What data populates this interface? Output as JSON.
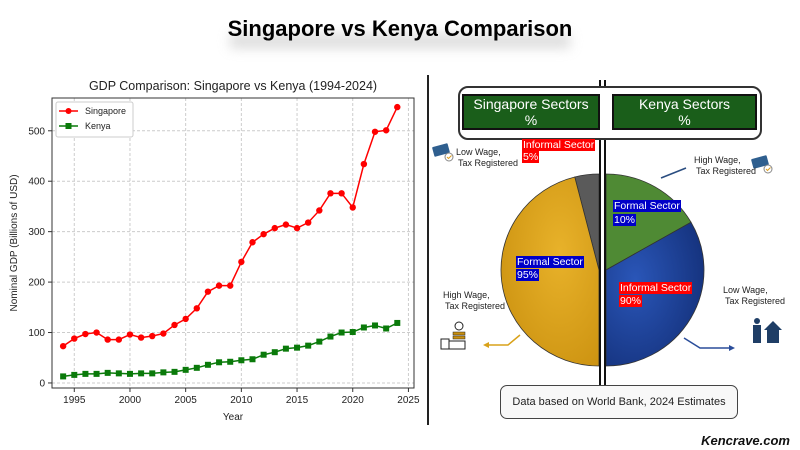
{
  "title": "Singapore vs Kenya Comparison",
  "chart_data": [
    {
      "type": "line",
      "title": "GDP Comparison: Singapore vs Kenya (1994-2024)",
      "xlabel": "Year",
      "ylabel": "Nominal GDP (Billions of USD)",
      "xlim": [
        1993,
        2025.5
      ],
      "ylim": [
        -10,
        565
      ],
      "xticks": [
        1995,
        2000,
        2005,
        2010,
        2015,
        2020,
        2025
      ],
      "yticks": [
        0,
        100,
        200,
        300,
        400,
        500
      ],
      "grid": true,
      "legend": "top-left",
      "x": [
        1994,
        1995,
        1996,
        1997,
        1998,
        1999,
        2000,
        2001,
        2002,
        2003,
        2004,
        2005,
        2006,
        2007,
        2008,
        2009,
        2010,
        2011,
        2012,
        2013,
        2014,
        2015,
        2016,
        2017,
        2018,
        2019,
        2020,
        2021,
        2022,
        2023,
        2024
      ],
      "series": [
        {
          "name": "Singapore",
          "color": "#ff0000",
          "marker": "circle",
          "values": [
            73,
            88,
            97,
            100,
            86,
            86,
            96,
            90,
            93,
            98,
            115,
            127,
            148,
            181,
            193,
            193,
            240,
            279,
            295,
            307,
            314,
            307,
            318,
            342,
            376,
            376,
            348,
            434,
            498,
            501,
            547
          ]
        },
        {
          "name": "Kenya",
          "color": "#0a7a0a",
          "marker": "square",
          "values": [
            13,
            16,
            18,
            18,
            20,
            19,
            18,
            19,
            19,
            21,
            22,
            26,
            30,
            36,
            41,
            42,
            45,
            47,
            56,
            61,
            68,
            70,
            74,
            82,
            92,
            100,
            101,
            110,
            114,
            108,
            119
          ]
        }
      ]
    },
    {
      "type": "pie",
      "title": "Singapore Sectors %",
      "slices": [
        {
          "label": "Informal Sector",
          "value": 5,
          "color": "#5a5a5a"
        },
        {
          "label": "Formal Sector",
          "value": 95,
          "color": "#d9a21a"
        }
      ]
    },
    {
      "type": "pie",
      "title": "Kenya Sectors %",
      "slices": [
        {
          "label": "Formal Sector",
          "value": 10,
          "color": "#4f8a34"
        },
        {
          "label": "Informal Sector",
          "value": 90,
          "color": "#1f45a0"
        }
      ]
    }
  ],
  "sg": {
    "title1": "Singapore Sectors",
    "title2": "%",
    "informal": "Informal Sector",
    "informal_pct": "5%",
    "formal": "Formal Sector",
    "formal_pct": "95%",
    "low1": "Low Wage,",
    "low2": "Tax Registered",
    "high1": "High Wage,",
    "high2": "Tax Registered"
  },
  "ke": {
    "title1": "Kenya Sectors",
    "title2": "%",
    "formal": "Formal Sector",
    "formal_pct": "10%",
    "informal": "Informal Sector",
    "informal_pct": "90%",
    "high1": "High Wage,",
    "high2": "Tax Registered",
    "low1": "Low Wage,",
    "low2": "Tax Registered"
  },
  "footer": "Data based on World Bank, 2024 Estimates",
  "brand": "Kencrave.com"
}
